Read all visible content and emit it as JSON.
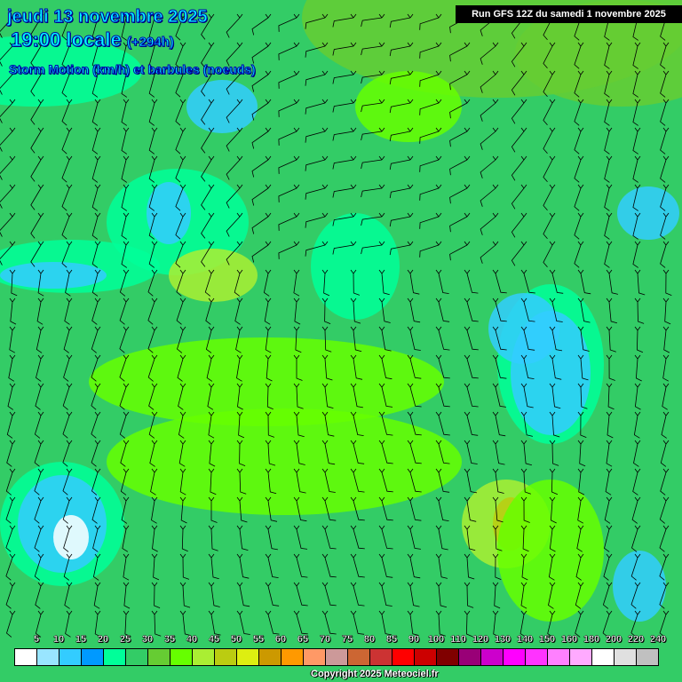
{
  "header": {
    "date": "jeudi 13 novembre 2025",
    "time": "19:00 locale",
    "offset": "(+294h)",
    "parameter": "Storm Motion (km/h) et barbules (noeuds)",
    "run": "Run GFS 12Z du samedi 1 novembre 2025"
  },
  "legend": {
    "labels": [
      "5",
      "10",
      "15",
      "20",
      "25",
      "30",
      "35",
      "40",
      "45",
      "50",
      "55",
      "60",
      "65",
      "70",
      "75",
      "80",
      "85",
      "90",
      "100",
      "110",
      "120",
      "130",
      "140",
      "150",
      "160",
      "180",
      "200",
      "220",
      "240"
    ],
    "colors": [
      "#ffffff",
      "#99e5ff",
      "#33ccff",
      "#0099ff",
      "#00ff99",
      "#33cc66",
      "#66cc33",
      "#66ff00",
      "#aaee33",
      "#bbcc11",
      "#ddee11",
      "#cc9900",
      "#ff9900",
      "#ff9966",
      "#cc9999",
      "#cc6633",
      "#cc3333",
      "#ff0000",
      "#cc0000",
      "#800000",
      "#990077",
      "#cc00cc",
      "#ff00ff",
      "#ff33ff",
      "#ff80ff",
      "#ffaaff",
      "#ffffff",
      "#e0e0e0",
      "#c0c0c0"
    ]
  },
  "copyright": "Copyright 2025 Meteociel.fr"
}
